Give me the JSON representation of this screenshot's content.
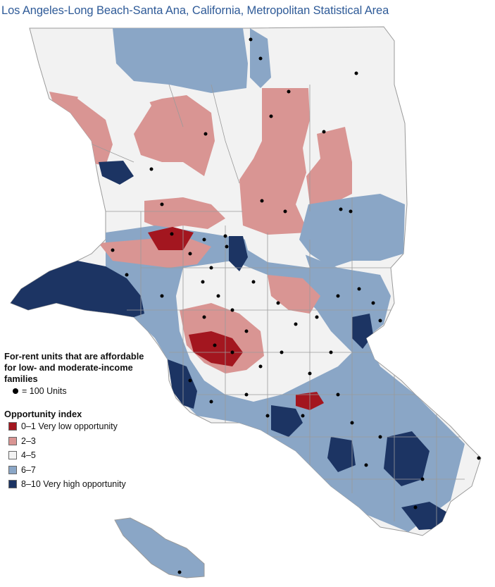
{
  "title": "Los Angeles-Long Beach-Santa Ana, California, Metropolitan Statistical Area",
  "legend": {
    "units_heading": "For-rent units that are affordable for low- and moderate-income families",
    "units_note": "= 100 Units",
    "opportunity_heading": "Opportunity index",
    "items": [
      {
        "label": "0–1 Very low opportunity",
        "color": "#a3161f"
      },
      {
        "label": "2–3",
        "color": "#d99593"
      },
      {
        "label": "4–5",
        "color": "#f2f2f2"
      },
      {
        "label": "6–7",
        "color": "#8aa6c6"
      },
      {
        "label": "8–10 Very high opportunity",
        "color": "#1c3463"
      }
    ]
  },
  "colors": {
    "title": "#2f5b98",
    "boundary": "#9a9a9a",
    "unit_dot": "#000000"
  }
}
